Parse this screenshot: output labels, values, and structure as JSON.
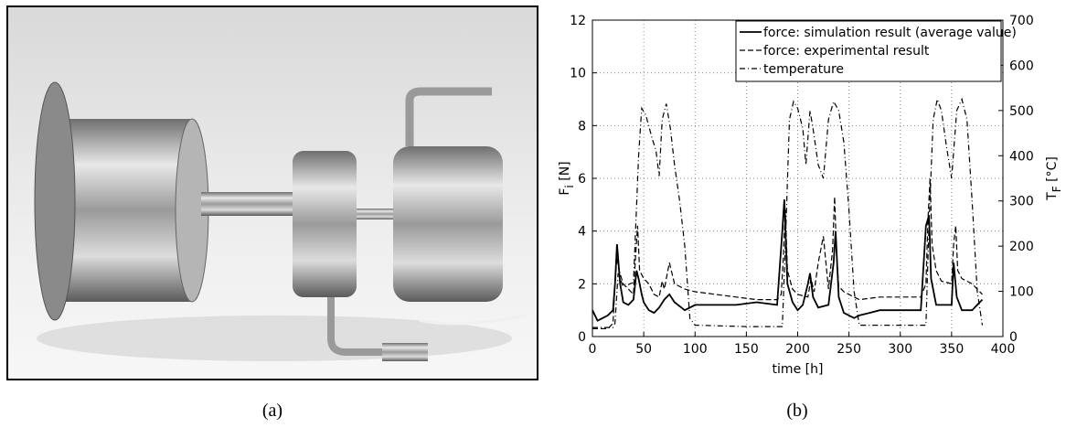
{
  "figure": {
    "labels": [
      "(a)",
      "(b)"
    ]
  },
  "chart_data": {
    "type": "line",
    "xlabel": "time [h]",
    "ylabel": {
      "main": "F",
      "sub": "i",
      "unit": " [N]"
    },
    "y2label": {
      "main": "T",
      "sub": "F",
      "unit": " [°C]"
    },
    "xlim": [
      0,
      400
    ],
    "xticks": [
      0,
      50,
      100,
      150,
      200,
      250,
      300,
      350,
      400
    ],
    "ylim": [
      0,
      12
    ],
    "yticks": [
      0,
      2,
      4,
      6,
      8,
      10,
      12
    ],
    "y2lim": [
      0,
      700
    ],
    "y2ticks": [
      0,
      100,
      200,
      300,
      400,
      500,
      600,
      700
    ],
    "grid": true,
    "legend": "upper right",
    "series": [
      {
        "name": "force: simulation result (average value)",
        "color": "#000000",
        "dash": "solid",
        "x": [
          0,
          5,
          10,
          15,
          20,
          22,
          24,
          27,
          30,
          35,
          40,
          43,
          45,
          48,
          50,
          55,
          60,
          65,
          70,
          75,
          80,
          90,
          100,
          120,
          140,
          160,
          180,
          185,
          187,
          190,
          195,
          200,
          205,
          210,
          212,
          215,
          220,
          230,
          235,
          237,
          240,
          245,
          250,
          255,
          260,
          270,
          280,
          300,
          320,
          325,
          328,
          330,
          335,
          340,
          350,
          352,
          355,
          360,
          370,
          375,
          380
        ],
        "values": [
          1.0,
          0.6,
          0.7,
          0.8,
          1.0,
          2.0,
          3.5,
          2.0,
          1.3,
          1.2,
          1.4,
          2.5,
          2.2,
          1.6,
          1.3,
          1.0,
          0.9,
          1.1,
          1.4,
          1.6,
          1.3,
          1.0,
          1.2,
          1.2,
          1.2,
          1.3,
          1.2,
          4.0,
          5.2,
          2.0,
          1.3,
          1.0,
          1.2,
          2.0,
          2.4,
          1.5,
          1.1,
          1.2,
          2.8,
          4.0,
          1.5,
          0.9,
          0.8,
          0.7,
          0.8,
          0.9,
          1.0,
          1.0,
          1.0,
          4.2,
          4.6,
          2.2,
          1.2,
          1.2,
          1.2,
          2.8,
          1.5,
          1.0,
          1.0,
          1.2,
          1.4
        ]
      },
      {
        "name": "force: experimental result",
        "color": "#000000",
        "dash": "dashed",
        "x": [
          0,
          10,
          15,
          20,
          22,
          24,
          26,
          30,
          35,
          40,
          42,
          44,
          46,
          50,
          55,
          60,
          65,
          68,
          70,
          72,
          75,
          80,
          90,
          100,
          120,
          140,
          160,
          180,
          184,
          186,
          188,
          190,
          195,
          200,
          210,
          213,
          216,
          220,
          225,
          230,
          234,
          236,
          238,
          240,
          245,
          250,
          255,
          260,
          280,
          300,
          320,
          325,
          327,
          329,
          331,
          335,
          340,
          350,
          352,
          354,
          356,
          360,
          370,
          375,
          380
        ],
        "values": [
          0.3,
          0.3,
          0.3,
          0.5,
          2.0,
          3.0,
          2.5,
          2.0,
          1.8,
          1.6,
          3.0,
          4.2,
          2.5,
          2.2,
          2.0,
          1.6,
          1.5,
          2.1,
          1.8,
          2.2,
          2.8,
          2.0,
          1.8,
          1.7,
          1.6,
          1.5,
          1.4,
          1.4,
          1.6,
          3.0,
          4.8,
          2.5,
          1.8,
          1.6,
          1.5,
          2.2,
          1.7,
          2.8,
          3.8,
          1.8,
          3.3,
          5.3,
          3.0,
          1.9,
          1.7,
          1.6,
          1.5,
          1.4,
          1.5,
          1.5,
          1.5,
          2.0,
          4.5,
          6.0,
          3.5,
          2.5,
          2.1,
          2.0,
          3.5,
          4.2,
          2.5,
          2.2,
          2.0,
          1.8,
          1.6
        ]
      },
      {
        "name": "temperature",
        "color": "#000000",
        "dash": "dashdot",
        "axis": "y2",
        "x": [
          0,
          20,
          22,
          25,
          30,
          40,
          45,
          48,
          52,
          58,
          62,
          65,
          68,
          72,
          76,
          80,
          85,
          90,
          95,
          100,
          150,
          185,
          188,
          192,
          196,
          200,
          205,
          208,
          212,
          215,
          220,
          225,
          230,
          235,
          240,
          245,
          250,
          255,
          260,
          300,
          325,
          328,
          332,
          336,
          340,
          345,
          350,
          355,
          360,
          365,
          370,
          375,
          380
        ],
        "values": [
          20,
          20,
          30,
          140,
          110,
          120,
          400,
          505,
          490,
          440,
          410,
          355,
          480,
          515,
          460,
          380,
          300,
          200,
          40,
          25,
          22,
          22,
          200,
          480,
          520,
          505,
          460,
          380,
          500,
          460,
          380,
          350,
          480,
          520,
          500,
          430,
          280,
          100,
          25,
          25,
          25,
          250,
          480,
          525,
          500,
          420,
          350,
          500,
          525,
          480,
          300,
          100,
          25
        ]
      }
    ]
  }
}
